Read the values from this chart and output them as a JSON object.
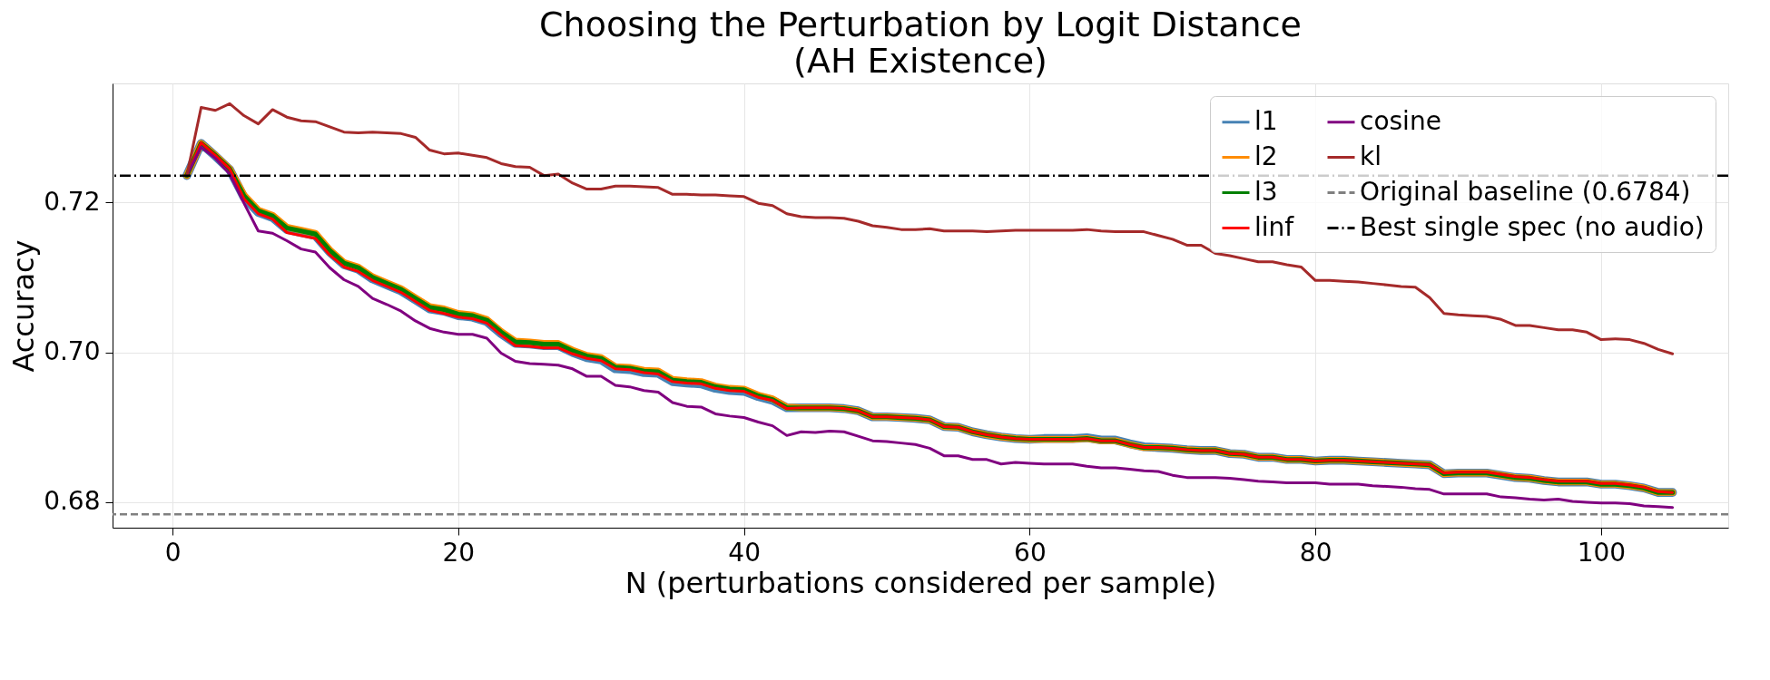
{
  "chart_data": {
    "type": "line",
    "title": "Choosing the Perturbation by Logit Distance\n(AH Existence)",
    "xlabel": "N (perturbations considered per sample)",
    "ylabel": "Accuracy",
    "x": [
      1,
      2,
      3,
      4,
      5,
      6,
      7,
      8,
      9,
      10,
      11,
      12,
      13,
      14,
      15,
      16,
      17,
      18,
      19,
      20,
      21,
      22,
      23,
      24,
      25,
      26,
      27,
      28,
      29,
      30,
      31,
      32,
      33,
      34,
      35,
      36,
      37,
      38,
      39,
      40,
      41,
      42,
      43,
      44,
      45,
      46,
      47,
      48,
      49,
      50,
      51,
      52,
      53,
      54,
      55,
      56,
      57,
      58,
      59,
      60,
      61,
      62,
      63,
      64,
      65,
      66,
      67,
      68,
      69,
      70,
      71,
      72,
      73,
      74,
      75,
      76,
      77,
      78,
      79,
      80,
      81,
      82,
      83,
      84,
      85,
      86,
      87,
      88,
      89,
      90,
      91,
      92,
      93,
      94,
      95,
      96,
      97,
      98,
      99,
      100,
      101,
      102,
      103,
      104,
      105
    ],
    "series": [
      {
        "name": "l1",
        "color": "#4682b4",
        "values": [
          0.7236,
          0.7279,
          0.7262,
          0.7244,
          0.7207,
          0.7187,
          0.718,
          0.7164,
          0.716,
          0.7156,
          0.7134,
          0.7117,
          0.7111,
          0.7098,
          0.709,
          0.7082,
          0.707,
          0.7058,
          0.7055,
          0.7049,
          0.7047,
          0.7041,
          0.7025,
          0.7012,
          0.7011,
          0.7009,
          0.7009,
          0.7,
          0.6993,
          0.699,
          0.6978,
          0.6977,
          0.6973,
          0.6972,
          0.6961,
          0.6959,
          0.6958,
          0.6952,
          0.6949,
          0.6948,
          0.6941,
          0.6936,
          0.6926,
          0.6926,
          0.6926,
          0.6926,
          0.6925,
          0.6922,
          0.6914,
          0.6914,
          0.6913,
          0.6912,
          0.691,
          0.6901,
          0.69,
          0.6894,
          0.689,
          0.6887,
          0.6885,
          0.6884,
          0.6885,
          0.6885,
          0.6885,
          0.6886,
          0.6883,
          0.6883,
          0.6878,
          0.6874,
          0.6873,
          0.6872,
          0.687,
          0.6869,
          0.6869,
          0.6865,
          0.6864,
          0.686,
          0.686,
          0.6857,
          0.6857,
          0.6855,
          0.6856,
          0.6856,
          0.6855,
          0.6854,
          0.6853,
          0.6852,
          0.6851,
          0.685,
          0.6838,
          0.6839,
          0.6839,
          0.6839,
          0.6836,
          0.6833,
          0.6832,
          0.6829,
          0.6827,
          0.6827,
          0.6827,
          0.6824,
          0.6824,
          0.6822,
          0.6819,
          0.6813,
          0.6813
        ]
      },
      {
        "name": "l2",
        "color": "#ff8c00",
        "values": [
          0.7236,
          0.7279,
          0.7263,
          0.7245,
          0.721,
          0.719,
          0.7183,
          0.7167,
          0.7163,
          0.7159,
          0.7137,
          0.712,
          0.7114,
          0.7101,
          0.7093,
          0.7085,
          0.7073,
          0.7061,
          0.7058,
          0.7052,
          0.705,
          0.7044,
          0.7028,
          0.7015,
          0.7014,
          0.7012,
          0.7012,
          0.7003,
          0.6996,
          0.6993,
          0.6981,
          0.698,
          0.6976,
          0.6975,
          0.6964,
          0.6962,
          0.6961,
          0.6955,
          0.6952,
          0.6951,
          0.6943,
          0.6938,
          0.6927,
          0.6926,
          0.6926,
          0.6926,
          0.6925,
          0.6922,
          0.6914,
          0.6914,
          0.6913,
          0.6912,
          0.691,
          0.6901,
          0.69,
          0.6894,
          0.689,
          0.6887,
          0.6885,
          0.6884,
          0.6884,
          0.6884,
          0.6884,
          0.6885,
          0.6882,
          0.6882,
          0.6877,
          0.6873,
          0.6873,
          0.6872,
          0.687,
          0.6869,
          0.6869,
          0.6865,
          0.6864,
          0.686,
          0.686,
          0.6857,
          0.6857,
          0.6855,
          0.6856,
          0.6856,
          0.6855,
          0.6854,
          0.6853,
          0.6852,
          0.6851,
          0.685,
          0.6838,
          0.6839,
          0.6839,
          0.6839,
          0.6836,
          0.6833,
          0.6832,
          0.6829,
          0.6827,
          0.6827,
          0.6827,
          0.6824,
          0.6824,
          0.6822,
          0.6819,
          0.6813,
          0.6813
        ]
      },
      {
        "name": "l3",
        "color": "#008000",
        "values": [
          0.7236,
          0.7279,
          0.7263,
          0.7245,
          0.7209,
          0.7189,
          0.7182,
          0.7166,
          0.7162,
          0.7158,
          0.7136,
          0.7119,
          0.7113,
          0.71,
          0.7092,
          0.7084,
          0.7072,
          0.706,
          0.7057,
          0.7051,
          0.7049,
          0.7043,
          0.7027,
          0.7014,
          0.7013,
          0.7011,
          0.7011,
          0.7002,
          0.6995,
          0.6992,
          0.698,
          0.6979,
          0.6975,
          0.6974,
          0.6963,
          0.6961,
          0.696,
          0.6954,
          0.6951,
          0.695,
          0.6942,
          0.6937,
          0.6926,
          0.6926,
          0.6926,
          0.6926,
          0.6925,
          0.6922,
          0.6914,
          0.6914,
          0.6913,
          0.6912,
          0.691,
          0.6901,
          0.69,
          0.6894,
          0.689,
          0.6887,
          0.6885,
          0.6884,
          0.6884,
          0.6884,
          0.6884,
          0.6885,
          0.6882,
          0.6882,
          0.6877,
          0.6873,
          0.6873,
          0.6872,
          0.687,
          0.6869,
          0.6869,
          0.6865,
          0.6864,
          0.686,
          0.686,
          0.6857,
          0.6857,
          0.6855,
          0.6856,
          0.6856,
          0.6855,
          0.6854,
          0.6853,
          0.6852,
          0.6851,
          0.685,
          0.6838,
          0.6839,
          0.6839,
          0.6839,
          0.6836,
          0.6833,
          0.6832,
          0.6829,
          0.6827,
          0.6827,
          0.6827,
          0.6824,
          0.6824,
          0.6822,
          0.6819,
          0.6813,
          0.6813
        ]
      },
      {
        "name": "linf",
        "color": "#ff0000",
        "values": [
          0.7236,
          0.728,
          0.7263,
          0.7245,
          0.7205,
          0.7185,
          0.7178,
          0.716,
          0.7156,
          0.7152,
          0.713,
          0.7114,
          0.7108,
          0.7096,
          0.7088,
          0.708,
          0.7068,
          0.7056,
          0.7052,
          0.7047,
          0.7045,
          0.7039,
          0.7023,
          0.7009,
          0.7008,
          0.7006,
          0.7006,
          0.6998,
          0.6992,
          0.6989,
          0.6978,
          0.6977,
          0.6973,
          0.6971,
          0.6961,
          0.6959,
          0.6958,
          0.6952,
          0.6949,
          0.6948,
          0.694,
          0.6936,
          0.6925,
          0.6926,
          0.6926,
          0.6926,
          0.6925,
          0.6922,
          0.6914,
          0.6914,
          0.6913,
          0.6912,
          0.691,
          0.6901,
          0.69,
          0.6894,
          0.689,
          0.6887,
          0.6885,
          0.6884,
          0.6884,
          0.6884,
          0.6884,
          0.6885,
          0.6882,
          0.6882,
          0.6877,
          0.6873,
          0.6873,
          0.6872,
          0.687,
          0.6869,
          0.6869,
          0.6865,
          0.6864,
          0.686,
          0.686,
          0.6857,
          0.6857,
          0.6855,
          0.6856,
          0.6856,
          0.6855,
          0.6854,
          0.6853,
          0.6852,
          0.6851,
          0.685,
          0.6839,
          0.684,
          0.684,
          0.684,
          0.6837,
          0.6834,
          0.6833,
          0.683,
          0.6828,
          0.6828,
          0.6828,
          0.6825,
          0.6825,
          0.6823,
          0.682,
          0.6814,
          0.6813
        ]
      },
      {
        "name": "cosine",
        "color": "#800080",
        "values": [
          0.7236,
          0.7274,
          0.7259,
          0.7238,
          0.7199,
          0.7162,
          0.7159,
          0.7149,
          0.7138,
          0.7134,
          0.7113,
          0.7097,
          0.7088,
          0.7072,
          0.7064,
          0.7055,
          0.7042,
          0.7032,
          0.7027,
          0.7024,
          0.7024,
          0.7019,
          0.6999,
          0.6988,
          0.6985,
          0.6984,
          0.6983,
          0.6978,
          0.6968,
          0.6968,
          0.6956,
          0.6954,
          0.6949,
          0.6947,
          0.6933,
          0.6928,
          0.6927,
          0.6918,
          0.6915,
          0.6913,
          0.6907,
          0.6902,
          0.6889,
          0.6894,
          0.6893,
          0.6895,
          0.6894,
          0.6888,
          0.6882,
          0.6881,
          0.6879,
          0.6877,
          0.6872,
          0.6862,
          0.6862,
          0.6857,
          0.6857,
          0.6851,
          0.6853,
          0.6852,
          0.6851,
          0.6851,
          0.6851,
          0.6848,
          0.6846,
          0.6846,
          0.6844,
          0.6842,
          0.6841,
          0.6836,
          0.6833,
          0.6833,
          0.6833,
          0.6832,
          0.683,
          0.6828,
          0.6827,
          0.6826,
          0.6826,
          0.6826,
          0.6824,
          0.6824,
          0.6824,
          0.6822,
          0.6821,
          0.682,
          0.6818,
          0.6817,
          0.6811,
          0.6811,
          0.6811,
          0.6811,
          0.6807,
          0.6806,
          0.6804,
          0.6803,
          0.6804,
          0.6801,
          0.68,
          0.6799,
          0.6799,
          0.6798,
          0.6795,
          0.6794,
          0.6793
        ]
      },
      {
        "name": "kl",
        "color": "#a52a2a",
        "values": [
          0.7236,
          0.7327,
          0.7323,
          0.7332,
          0.7316,
          0.7305,
          0.7324,
          0.7314,
          0.7309,
          0.7308,
          0.7301,
          0.7294,
          0.7293,
          0.7294,
          0.7293,
          0.7292,
          0.7287,
          0.727,
          0.7265,
          0.7266,
          0.7263,
          0.726,
          0.7252,
          0.7248,
          0.7247,
          0.7236,
          0.7238,
          0.7226,
          0.7218,
          0.7218,
          0.7222,
          0.7222,
          0.7221,
          0.722,
          0.7211,
          0.7211,
          0.721,
          0.721,
          0.7209,
          0.7208,
          0.7199,
          0.7196,
          0.7185,
          0.7181,
          0.718,
          0.718,
          0.7179,
          0.7175,
          0.7169,
          0.7167,
          0.7164,
          0.7164,
          0.7165,
          0.7162,
          0.7162,
          0.7162,
          0.7161,
          0.7162,
          0.7163,
          0.7163,
          0.7163,
          0.7163,
          0.7163,
          0.7164,
          0.7162,
          0.7161,
          0.7161,
          0.7161,
          0.7156,
          0.7151,
          0.7143,
          0.7143,
          0.7132,
          0.7129,
          0.7125,
          0.7121,
          0.7121,
          0.7117,
          0.7114,
          0.7096,
          0.7096,
          0.7095,
          0.7094,
          0.7092,
          0.709,
          0.7088,
          0.7087,
          0.7073,
          0.7052,
          0.705,
          0.7049,
          0.7048,
          0.7044,
          0.7036,
          0.7036,
          0.7033,
          0.703,
          0.703,
          0.7027,
          0.7017,
          0.7018,
          0.7017,
          0.7012,
          0.7004,
          0.6998
        ]
      }
    ],
    "ref_lines": [
      {
        "axis": "y",
        "value": 0.6784,
        "label": "Original baseline (0.6784)",
        "color": "#808080",
        "line_style": "dashed"
      },
      {
        "axis": "y",
        "value": 0.7236,
        "label": "Best single spec (no audio)",
        "color": "#000000",
        "line_style": "dashdot"
      }
    ],
    "xlim": [
      -4.2,
      108.9
    ],
    "ylim": [
      0.6766,
      0.7359
    ],
    "xticks": [
      0,
      20,
      40,
      60,
      80,
      100
    ],
    "yticks": [
      0.68,
      {
        "value": 0.7,
        "label": "0.70"
      },
      0.72
    ],
    "grid": true,
    "legend": "top right",
    "line_style": "solid",
    "marker": "none"
  }
}
